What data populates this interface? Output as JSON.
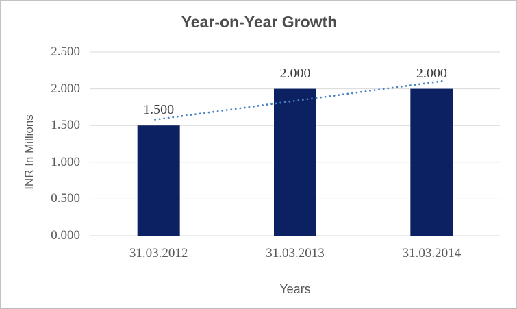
{
  "chart_data": {
    "type": "bar",
    "title": "Year-on-Year Growth",
    "xlabel": "Years",
    "ylabel": "INR In Millions",
    "categories": [
      "31.03.2012",
      "31.03.2013",
      "31.03.2014"
    ],
    "values": [
      1.5,
      2.0,
      2.0
    ],
    "data_labels": [
      "1.500",
      "2.000",
      "2.000"
    ],
    "ylim": [
      0,
      2.5
    ],
    "ytick_step": 0.5,
    "ytick_labels": [
      "0.000",
      "0.500",
      "1.000",
      "1.500",
      "2.000",
      "2.500"
    ],
    "grid": true,
    "legend": false,
    "colors": {
      "bar": "#0b2161",
      "trendline": "#4a82c4",
      "gridline": "#d9d9d9",
      "axis_line": "#d9d9d9",
      "title_text": "#4d4d4d",
      "axis_text": "#595959",
      "data_label_text": "#3f3f3f"
    },
    "trendline": {
      "type": "linear",
      "style": "dotted",
      "start_value": 1.58,
      "end_value": 2.11,
      "start_x_frac": 0.158,
      "end_x_frac": 0.866
    }
  }
}
